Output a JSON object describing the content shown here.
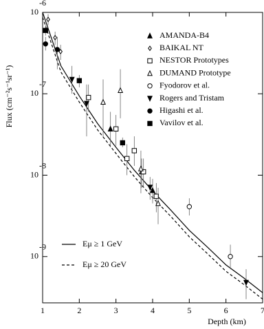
{
  "chart_data": {
    "type": "scatter",
    "log_y": true,
    "xlabel": "Depth  (km)",
    "ylabel": "Flux  (cm⁻²s⁻¹sr⁻¹)",
    "xlim": [
      1,
      7
    ],
    "xticks": [
      1,
      2,
      3,
      4,
      5,
      6,
      7
    ],
    "ylim": [
      2.7e-10,
      1e-06
    ],
    "yticks": [
      {
        "value": 1e-06,
        "label": "10",
        "power": "-6"
      },
      {
        "value": 1e-07,
        "label": "10",
        "power": "-7"
      },
      {
        "value": 1e-08,
        "label": "10",
        "power": "-8"
      },
      {
        "value": 1e-09,
        "label": "10",
        "power": "-9"
      }
    ],
    "curves": [
      {
        "name": "Eμ ≥ 1 GeV",
        "style": "solid",
        "color": "#000",
        "x": [
          1,
          1.5,
          2,
          2.5,
          3,
          3.5,
          4,
          4.5,
          5,
          5.5,
          6,
          6.5,
          7
        ],
        "values": [
          1e-06,
          2.2e-07,
          9.4e-08,
          4.3e-08,
          2.2e-08,
          1.15e-08,
          6.4e-09,
          3.7e-09,
          2.1e-09,
          1.3e-09,
          7.9e-10,
          5.4e-10,
          3.6e-10
        ]
      },
      {
        "name": "Eμ ≥ 20 GeV",
        "style": "dashed",
        "color": "#000",
        "x": [
          1,
          1.5,
          2,
          2.5,
          3,
          3.5,
          4,
          4.5,
          5,
          5.5,
          6,
          6.5,
          7
        ],
        "values": [
          8.7e-07,
          1.85e-07,
          7.9e-08,
          3.6e-08,
          1.85e-08,
          9.6e-09,
          5.3e-09,
          3.1e-09,
          1.75e-09,
          1.08e-09,
          6.6e-10,
          4.5e-10,
          3e-10
        ]
      }
    ],
    "series": [
      {
        "name": "AMANDA-B4",
        "marker": "triangle",
        "fill": true,
        "color": "#000",
        "x": [
          2.85,
          3.7,
          4.0
        ],
        "values": [
          3.7e-08,
          1.1e-08,
          6.5e-09
        ],
        "lower": [
          2.2e-08,
          7e-09,
          4.5e-09
        ],
        "upper": [
          6e-08,
          1.6e-08,
          9e-09
        ]
      },
      {
        "name": "BAIKAL NT",
        "marker": "diamond",
        "fill": false,
        "color": "#000",
        "x": [
          1.15,
          1.34,
          1.49
        ],
        "values": [
          8.2e-07,
          4.9e-07,
          3.3e-07
        ],
        "lower": [
          7e-07,
          4e-07,
          2.6e-07
        ],
        "upper": [
          9.5e-07,
          5.8e-07,
          4e-07
        ]
      },
      {
        "name": "NESTOR Prototypes",
        "marker": "square",
        "fill": false,
        "color": "#000",
        "x": [
          2.25,
          3.0,
          3.3,
          3.5,
          3.75,
          4.1
        ],
        "values": [
          9e-08,
          3.7e-08,
          1.6e-08,
          2e-08,
          1.1e-08,
          5.5e-09
        ],
        "lower": [
          6e-08,
          2.3e-08,
          1e-08,
          1.3e-08,
          7e-09,
          3.5e-09
        ],
        "upper": [
          1.3e-07,
          5.5e-08,
          2.4e-08,
          3e-08,
          1.6e-08,
          8e-09
        ]
      },
      {
        "name": "DUMAND Prototype",
        "marker": "triangle",
        "fill": false,
        "color": "#000",
        "x": [
          2.65,
          3.12,
          3.68,
          4.15
        ],
        "values": [
          7.9e-08,
          1.1e-07,
          1.2e-08,
          4.5e-09
        ],
        "lower": [
          3e-08,
          5e-08,
          6e-09,
          2.5e-09
        ],
        "upper": [
          1.5e-07,
          2e-07,
          2e-08,
          7e-09
        ]
      },
      {
        "name": "Fyodorov et al.",
        "marker": "circle",
        "fill": false,
        "color": "#000",
        "x": [
          5.0,
          6.12
        ],
        "values": [
          4.1e-09,
          1e-09
        ],
        "lower": [
          3.2e-09,
          7e-10
        ],
        "upper": [
          5.2e-09,
          1.4e-09
        ]
      },
      {
        "name": "Rogers and Tristam",
        "marker": "triangle-down",
        "fill": true,
        "color": "#000",
        "x": [
          1.8,
          2.2,
          3.93,
          6.55
        ],
        "values": [
          1.5e-07,
          7.6e-08,
          7.1e-09,
          4.8e-10
        ],
        "lower": [
          1e-07,
          3e-08,
          5e-09,
          3e-10
        ],
        "upper": [
          2.2e-07,
          1.3e-07,
          9.5e-09,
          7e-10
        ]
      },
      {
        "name": "Higashi et al.",
        "marker": "circle",
        "fill": true,
        "color": "#000",
        "x": [
          1.08,
          1.4
        ],
        "values": [
          4.1e-07,
          3.5e-07
        ],
        "lower": [
          3.4e-07,
          2e-07
        ],
        "upper": [
          5e-07,
          5e-07
        ]
      },
      {
        "name": "Vavilov et al.",
        "marker": "square",
        "fill": true,
        "color": "#000",
        "x": [
          1.08,
          2.0,
          3.18
        ],
        "values": [
          6e-07,
          1.45e-07,
          2.5e-08
        ],
        "lower": [
          5.2e-07,
          1.2e-07,
          2.2e-08
        ],
        "upper": [
          7e-07,
          1.7e-07,
          2.9e-08
        ]
      }
    ]
  }
}
